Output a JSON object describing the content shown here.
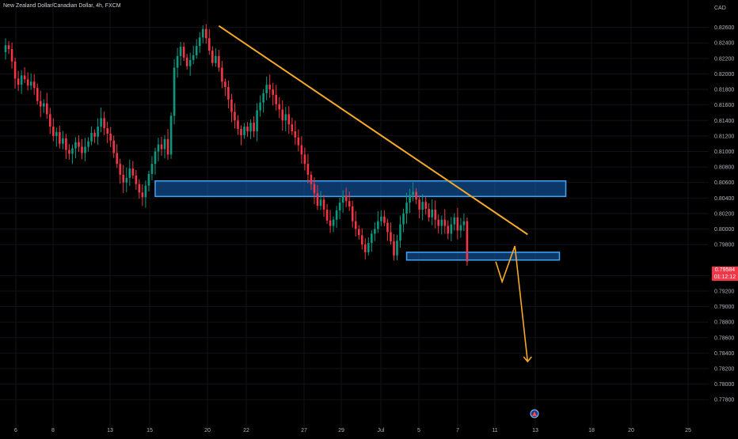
{
  "header": {
    "symbol_title": "New Zealand Dollar/Canadian Dollar, 4h, FXCM"
  },
  "price_axis": {
    "currency": "CAD",
    "current_price": "0.79584",
    "countdown": "01:12:12"
  },
  "colors": {
    "background": "#000000",
    "up_candle": "#089981",
    "down_candle": "#f23645",
    "zone_fill": "#1565c0",
    "zone_border": "#42a5f5",
    "trendline": "#f7a928",
    "projection": "#f7a928",
    "badge": "#f23645",
    "axis_text": "#b2b5be"
  },
  "chart_data": {
    "type": "candlestick",
    "title": "New Zealand Dollar/Canadian Dollar, 4h, FXCM",
    "timeframe": "4h",
    "y_unit": "CAD",
    "ylim": [
      0.777,
      0.828
    ],
    "y_ticks": [
      "0.82600",
      "0.82400",
      "0.82200",
      "0.82000",
      "0.81800",
      "0.81600",
      "0.81400",
      "0.81200",
      "0.81000",
      "0.80800",
      "0.80600",
      "0.80400",
      "0.80200",
      "0.80000",
      "0.79800",
      "0.79400",
      "0.79200",
      "0.79000",
      "0.78800",
      "0.78600",
      "0.78400",
      "0.78200",
      "0.78000",
      "0.77800"
    ],
    "x_ticks": [
      "6",
      "8",
      "13",
      "15",
      "20",
      "22",
      "27",
      "29",
      "Jul",
      "5",
      "7",
      "11",
      "13",
      "18",
      "20",
      "25"
    ],
    "grid": true,
    "close_path": [
      [
        0.8228,
        0.8237,
        0.8232,
        0.8216,
        0.8194,
        0.8186,
        0.8198,
        0.8193,
        0.8185,
        0.819,
        0.8182
      ],
      [
        0.8165,
        0.8158,
        0.8162,
        0.8148,
        0.8132,
        0.812,
        0.8125,
        0.811,
        0.8117,
        0.8102,
        0.8097
      ],
      [
        0.8104,
        0.8112,
        0.8106,
        0.8098,
        0.8106,
        0.8113,
        0.8124,
        0.8119,
        0.8132,
        0.8143,
        0.813
      ],
      [
        0.8123,
        0.8114,
        0.8098,
        0.8084,
        0.807,
        0.806,
        0.8066,
        0.8078,
        0.8069,
        0.8058,
        0.8047
      ],
      [
        0.8041,
        0.8056,
        0.8071,
        0.8084,
        0.81,
        0.8109,
        0.8103,
        0.8116,
        0.8096,
        0.8146,
        0.8208
      ],
      [
        0.8223,
        0.8235,
        0.8221,
        0.821,
        0.8218,
        0.8224,
        0.8236,
        0.8247,
        0.8258,
        0.8246,
        0.823
      ],
      [
        0.8214,
        0.8223,
        0.8208,
        0.819,
        0.8183,
        0.8167,
        0.8151,
        0.814,
        0.8129,
        0.8121,
        0.8132
      ],
      [
        0.8126,
        0.8137,
        0.8126,
        0.8153,
        0.8163,
        0.8175,
        0.8186,
        0.818,
        0.8173,
        0.8161,
        0.8154
      ],
      [
        0.814,
        0.8148,
        0.8135,
        0.8126,
        0.8118,
        0.8108,
        0.8096,
        0.8084,
        0.807,
        0.8058,
        0.8046
      ],
      [
        0.803,
        0.8038,
        0.8025,
        0.8011,
        0.8004,
        0.8012,
        0.8024,
        0.8034,
        0.8043,
        0.8036,
        0.8029
      ],
      [
        0.801,
        0.8,
        0.7992,
        0.798,
        0.797,
        0.7982,
        0.7994,
        0.8,
        0.801,
        0.8016,
        0.8008
      ],
      [
        0.7996,
        0.7984,
        0.7966,
        0.7985,
        0.8006,
        0.802,
        0.8034,
        0.8044,
        0.8048,
        0.8038,
        0.8025
      ],
      [
        0.8035,
        0.8026,
        0.8015,
        0.8025,
        0.8012,
        0.8004,
        0.8012,
        0.8004,
        0.7994,
        0.8006,
        0.8015
      ],
      [
        0.7998,
        0.8005,
        0.801,
        0.7958
      ]
    ],
    "levels": [
      {
        "name": "resistance-zone",
        "top": 0.8062,
        "bottom": 0.8042,
        "from_index": 48,
        "to_index": 177
      },
      {
        "name": "support-zone",
        "top": 0.797,
        "bottom": 0.796,
        "from_index": 127,
        "to_index": 175
      }
    ],
    "trendline": {
      "start": [
        68,
        0.8262
      ],
      "end": [
        165,
        0.7993
      ]
    },
    "projection": [
      [
        155,
        0.7958
      ],
      [
        157,
        0.7932
      ],
      [
        161,
        0.7978
      ],
      [
        165,
        0.7829
      ]
    ]
  }
}
